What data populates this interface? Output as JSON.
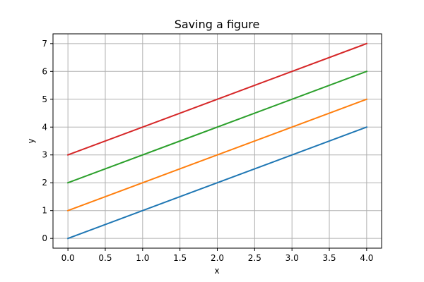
{
  "chart_data": {
    "type": "line",
    "title": "Saving a figure",
    "xlabel": "x",
    "ylabel": "y",
    "x": [
      0,
      4
    ],
    "xticks": [
      0.0,
      0.5,
      1.0,
      1.5,
      2.0,
      2.5,
      3.0,
      3.5,
      4.0
    ],
    "xtick_labels": [
      "0.0",
      "0.5",
      "1.0",
      "1.5",
      "2.0",
      "2.5",
      "3.0",
      "3.5",
      "4.0"
    ],
    "yticks": [
      0,
      1,
      2,
      3,
      4,
      5,
      6,
      7
    ],
    "ytick_labels": [
      "0",
      "1",
      "2",
      "3",
      "4",
      "5",
      "6",
      "7"
    ],
    "xlim": [
      -0.2,
      4.2
    ],
    "ylim": [
      -0.35,
      7.35
    ],
    "grid": true,
    "series": [
      {
        "values": [
          0,
          4
        ],
        "color": "#1f77b4"
      },
      {
        "values": [
          1,
          5
        ],
        "color": "#ff7f0e"
      },
      {
        "values": [
          2,
          6
        ],
        "color": "#2ca02c"
      },
      {
        "values": [
          3,
          7
        ],
        "color": "#d62728"
      }
    ]
  }
}
